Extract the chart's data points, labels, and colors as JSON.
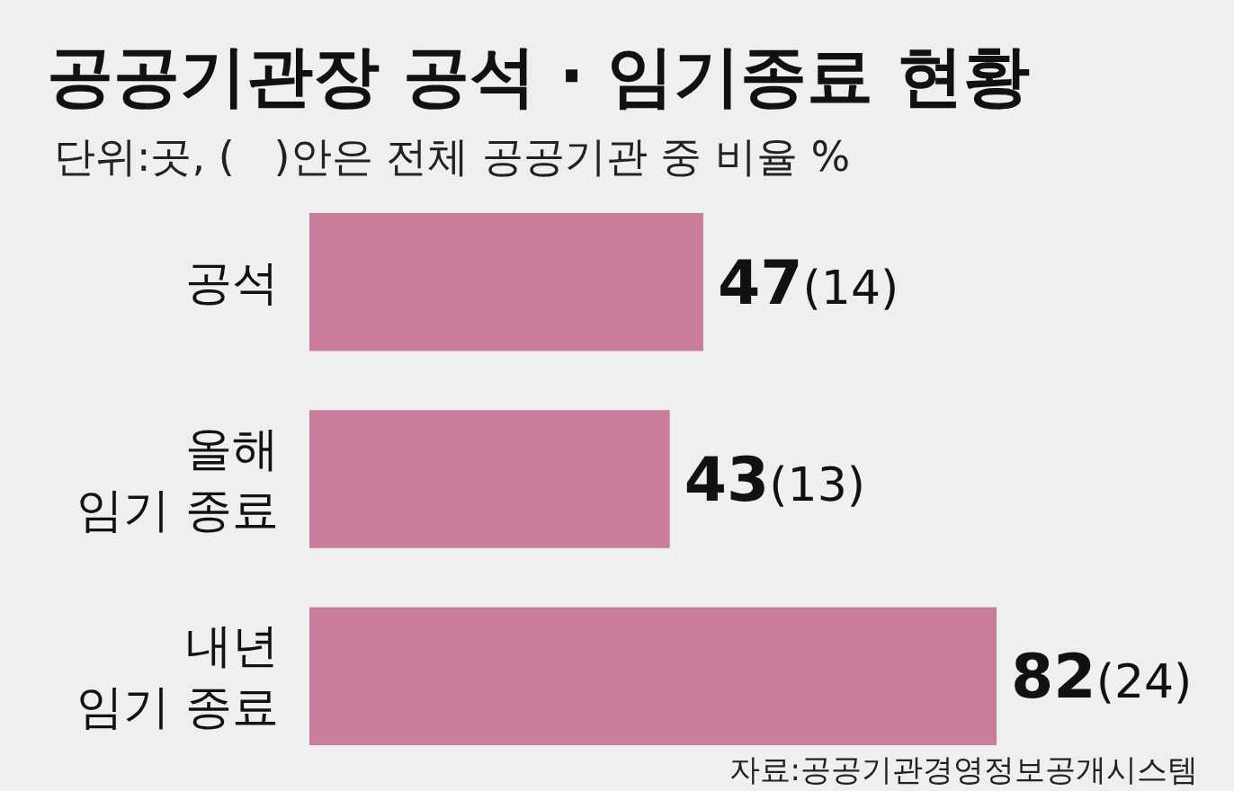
{
  "chart_data": {
    "type": "bar",
    "orientation": "horizontal",
    "title": "공공기관장 공석 · 임기종료 현황",
    "subtitle": "단위:곳, (   )안은 전체 공공기관 중 비율 %",
    "categories": [
      "공석",
      "올해\n임기 종료",
      "내년\n임기 종료"
    ],
    "values": [
      47,
      43,
      82
    ],
    "color": "#c97c9c",
    "value_labels": [
      "47(14)",
      "43(13)",
      "82(24)"
    ],
    "annotations": [
      "자료:공공기관경영정보공개시스템"
    ]
  }
}
